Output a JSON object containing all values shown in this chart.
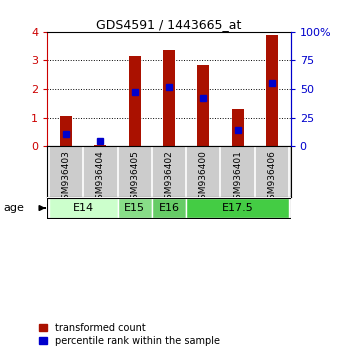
{
  "title": "GDS4591 / 1443665_at",
  "samples": [
    "GSM936403",
    "GSM936404",
    "GSM936405",
    "GSM936402",
    "GSM936400",
    "GSM936401",
    "GSM936406"
  ],
  "transformed_counts": [
    1.07,
    0.05,
    3.15,
    3.37,
    2.85,
    1.3,
    3.88
  ],
  "percentile_ranks_scaled": [
    0.44,
    0.17,
    1.9,
    2.08,
    1.68,
    0.56,
    2.2
  ],
  "age_groups": [
    {
      "label": "E14",
      "cols": [
        0,
        1
      ],
      "color": "#ccffcc"
    },
    {
      "label": "E15",
      "cols": [
        2
      ],
      "color": "#88dd88"
    },
    {
      "label": "E16",
      "cols": [
        3
      ],
      "color": "#66cc66"
    },
    {
      "label": "E17.5",
      "cols": [
        4,
        5,
        6
      ],
      "color": "#44cc44"
    }
  ],
  "bar_color": "#aa1100",
  "percentile_color": "#0000cc",
  "bar_width": 0.35,
  "ylim_left": [
    0,
    4
  ],
  "ylim_right": [
    0,
    100
  ],
  "yticks_left": [
    0,
    1,
    2,
    3,
    4
  ],
  "yticks_right": [
    0,
    25,
    50,
    75,
    100
  ],
  "bg_color": "#ffffff",
  "sample_area_color": "#cccccc",
  "age_label": "age"
}
